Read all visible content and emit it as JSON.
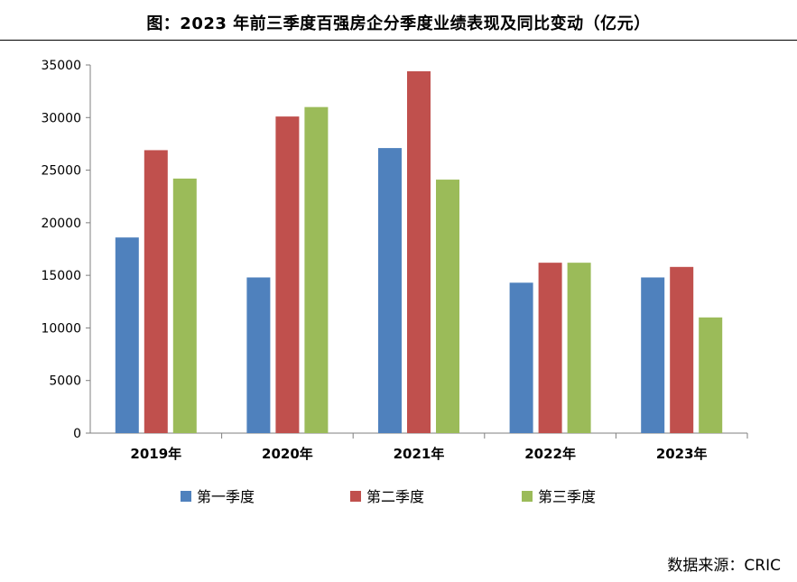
{
  "title": "图：2023 年前三季度百强房企分季度业绩表现及同比变动（亿元）",
  "source": "数据来源：CRIC",
  "chart_data": {
    "type": "bar",
    "categories": [
      "2019年",
      "2020年",
      "2021年",
      "2022年",
      "2023年"
    ],
    "series": [
      {
        "name": "第一季度",
        "color": "#4f81bd",
        "values": [
          18600,
          14800,
          27100,
          14300,
          14800
        ]
      },
      {
        "name": "第二季度",
        "color": "#c0504d",
        "values": [
          26900,
          30100,
          34400,
          16200,
          15800
        ]
      },
      {
        "name": "第三季度",
        "color": "#9bbb59",
        "values": [
          24200,
          31000,
          24100,
          16200,
          11000
        ]
      }
    ],
    "yticks": [
      "0",
      "5000",
      "10000",
      "15000",
      "20000",
      "25000",
      "30000",
      "35000"
    ],
    "ylim": [
      0,
      35000
    ],
    "legend_position": "bottom",
    "grid": false
  }
}
